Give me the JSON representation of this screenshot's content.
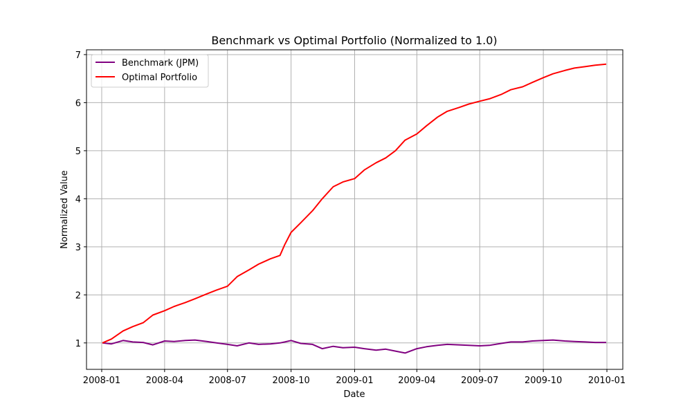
{
  "chart_data": {
    "type": "line",
    "title": "Benchmark vs Optimal Portfolio (Normalized to 1.0)",
    "xlabel": "Date",
    "ylabel": "Normalized Value",
    "x_ticks": [
      "2008-01",
      "2008-04",
      "2008-07",
      "2008-10",
      "2009-01",
      "2009-04",
      "2009-07",
      "2009-10",
      "2010-01"
    ],
    "y_ticks": [
      1,
      2,
      3,
      4,
      5,
      6,
      7
    ],
    "xlim": [
      "2007-12-10",
      "2010-01-24"
    ],
    "ylim": [
      0.45,
      7.1
    ],
    "grid": true,
    "legend_position": "top-left",
    "x": [
      "2008-01-02",
      "2008-01-15",
      "2008-02-01",
      "2008-02-15",
      "2008-03-01",
      "2008-03-15",
      "2008-04-01",
      "2008-04-15",
      "2008-05-01",
      "2008-05-15",
      "2008-06-01",
      "2008-06-15",
      "2008-07-01",
      "2008-07-15",
      "2008-08-01",
      "2008-08-15",
      "2008-09-01",
      "2008-09-15",
      "2008-09-22",
      "2008-10-01",
      "2008-10-15",
      "2008-11-01",
      "2008-11-15",
      "2008-12-01",
      "2008-12-15",
      "2009-01-01",
      "2009-01-15",
      "2009-02-01",
      "2009-02-15",
      "2009-03-01",
      "2009-03-15",
      "2009-04-01",
      "2009-04-15",
      "2009-05-01",
      "2009-05-15",
      "2009-06-01",
      "2009-06-15",
      "2009-07-01",
      "2009-07-15",
      "2009-08-01",
      "2009-08-15",
      "2009-09-01",
      "2009-09-15",
      "2009-10-01",
      "2009-10-15",
      "2009-11-01",
      "2009-11-15",
      "2009-12-01",
      "2009-12-15",
      "2009-12-31"
    ],
    "series": [
      {
        "name": "Benchmark (JPM)",
        "color": "#800080",
        "values": [
          1.0,
          0.98,
          1.05,
          1.02,
          1.01,
          0.96,
          1.04,
          1.03,
          1.05,
          1.06,
          1.03,
          1.0,
          0.97,
          0.94,
          1.0,
          0.97,
          0.98,
          1.0,
          1.02,
          1.05,
          0.99,
          0.97,
          0.88,
          0.93,
          0.9,
          0.91,
          0.88,
          0.85,
          0.87,
          0.83,
          0.79,
          0.88,
          0.92,
          0.95,
          0.97,
          0.96,
          0.95,
          0.94,
          0.95,
          0.99,
          1.02,
          1.02,
          1.04,
          1.05,
          1.06,
          1.04,
          1.03,
          1.02,
          1.01,
          1.01
        ]
      },
      {
        "name": "Optimal Portfolio",
        "color": "#ff0000",
        "values": [
          1.0,
          1.08,
          1.25,
          1.34,
          1.42,
          1.58,
          1.67,
          1.76,
          1.84,
          1.92,
          2.02,
          2.1,
          2.18,
          2.38,
          2.52,
          2.64,
          2.75,
          2.82,
          3.05,
          3.3,
          3.5,
          3.75,
          4.0,
          4.25,
          4.35,
          4.42,
          4.6,
          4.75,
          4.85,
          5.0,
          5.22,
          5.35,
          5.52,
          5.7,
          5.82,
          5.9,
          5.97,
          6.03,
          6.08,
          6.17,
          6.27,
          6.33,
          6.42,
          6.52,
          6.6,
          6.67,
          6.72,
          6.75,
          6.78,
          6.8
        ]
      }
    ]
  }
}
